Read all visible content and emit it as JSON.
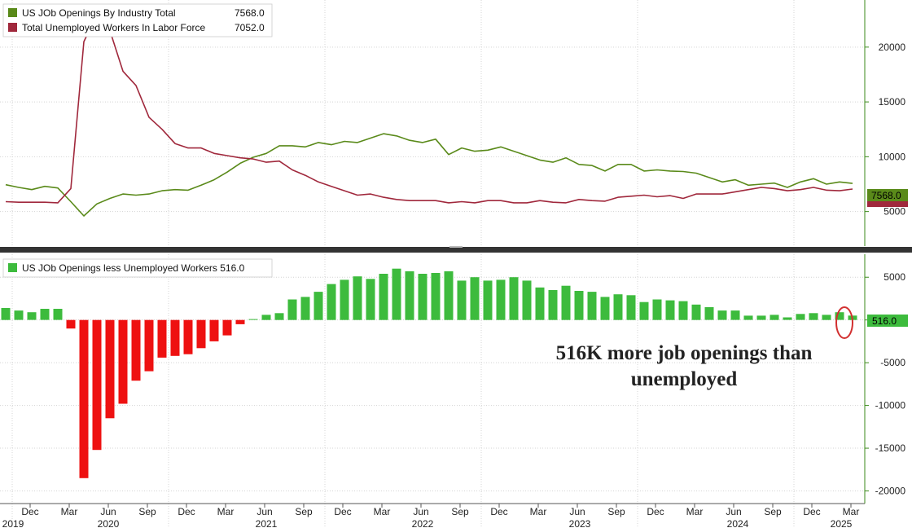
{
  "chart_data": [
    {
      "type": "line",
      "ylim": [
        2000,
        24000
      ],
      "yticks": [
        5000,
        10000,
        15000,
        20000
      ],
      "grid": true,
      "legend_position": "top-left",
      "series": [
        {
          "name": "US JOb Openings By Industry Total",
          "last_value": "7568.0",
          "color": "#5a8a1a",
          "values": [
            7450,
            7200,
            7000,
            7300,
            7150,
            5900,
            4600,
            5700,
            6200,
            6600,
            6500,
            6600,
            6900,
            7000,
            6950,
            7400,
            7900,
            8600,
            9400,
            9950,
            10300,
            11000,
            11000,
            10900,
            11300,
            11100,
            11400,
            11300,
            11700,
            12100,
            11900,
            11500,
            11300,
            11600,
            10200,
            10800,
            10500,
            10600,
            10900,
            10500,
            10100,
            9700,
            9500,
            9900,
            9300,
            9200,
            8700,
            9300,
            9300,
            8700,
            8800,
            8700,
            8650,
            8500,
            8100,
            7700,
            7900,
            7400,
            7500,
            7600,
            7200,
            7700,
            8000,
            7500,
            7700,
            7568
          ]
        },
        {
          "name": "Total Unemployed Workers In Labor Force",
          "last_value": "7052.0",
          "color": "#a0283c",
          "values": [
            5900,
            5850,
            5850,
            5850,
            5800,
            7100,
            20500,
            23000,
            21500,
            17800,
            16500,
            13600,
            12500,
            11200,
            10800,
            10800,
            10300,
            10100,
            9900,
            9800,
            9500,
            9600,
            8800,
            8300,
            7700,
            7300,
            6900,
            6500,
            6600,
            6300,
            6100,
            6000,
            6000,
            6000,
            5800,
            5900,
            5800,
            6000,
            6000,
            5800,
            5800,
            6000,
            5850,
            5800,
            6100,
            6000,
            5950,
            6300,
            6400,
            6500,
            6350,
            6450,
            6200,
            6600,
            6600,
            6600,
            6800,
            7000,
            7200,
            7100,
            6900,
            7000,
            7200,
            6950,
            6900,
            7052
          ]
        }
      ]
    },
    {
      "type": "bar",
      "ylim": [
        -21000,
        7500
      ],
      "yticks": [
        5000,
        0,
        -5000,
        -10000,
        -15000,
        -20000
      ],
      "ytick_labels": [
        "5000",
        "",
        "-5000",
        "-10000",
        "-15000",
        "-20000"
      ],
      "grid": true,
      "legend_position": "top-left",
      "series": [
        {
          "name": "US JOb Openings less Unemployed Workers",
          "last_value": "516.0",
          "positive_color": "#3dbb3d",
          "negative_color": "#ee1111",
          "values": [
            1400,
            1100,
            900,
            1300,
            1300,
            -1000,
            -18500,
            -15200,
            -11500,
            -9800,
            -7100,
            -6000,
            -4400,
            -4200,
            -4000,
            -3300,
            -2500,
            -1800,
            -500,
            100,
            600,
            800,
            2400,
            2700,
            3300,
            4200,
            4700,
            5100,
            4800,
            5400,
            6000,
            5700,
            5400,
            5500,
            5700,
            4600,
            5000,
            4600,
            4700,
            5000,
            4600,
            3800,
            3500,
            4000,
            3400,
            3300,
            2700,
            3000,
            2900,
            2100,
            2400,
            2300,
            2200,
            1800,
            1500,
            1100,
            1100,
            500,
            500,
            600,
            300,
            700,
            800,
            600,
            900,
            516
          ]
        }
      ]
    }
  ],
  "x_axis": {
    "month_labels": [
      "Dec",
      "Mar",
      "Jun",
      "Sep",
      "Dec",
      "Mar",
      "Jun",
      "Sep",
      "Dec",
      "Mar",
      "Jun",
      "Sep",
      "Dec",
      "Mar",
      "Jun",
      "Sep",
      "Dec",
      "Mar",
      "Jun",
      "Sep",
      "Dec",
      "Mar"
    ],
    "year_labels": [
      "2019",
      "2020",
      "2021",
      "2022",
      "2023",
      "2024",
      "2025"
    ]
  },
  "annotation": {
    "line1": "516K more job openings than",
    "line2": "unemployed"
  }
}
